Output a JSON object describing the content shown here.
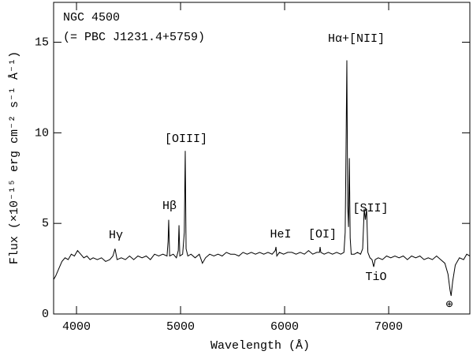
{
  "chart_data": {
    "type": "line",
    "xlabel": "Wavelength (Å)",
    "ylabel": "Flux (×10⁻¹⁵ erg cm⁻² s⁻¹ Å⁻¹)",
    "annotations": [
      "NGC 4500",
      "(= PBC J1231.4+5759)",
      "Hγ",
      "Hβ",
      "[OIII]",
      "HeI",
      "[OI]",
      "Hα+[NII]",
      "[SII]",
      "TiO",
      "⊕"
    ],
    "xlim": [
      3780,
      7780
    ],
    "ylim": [
      0,
      17.2
    ],
    "xticks": [
      4000,
      5000,
      6000,
      7000
    ],
    "yticks": [
      0,
      5,
      10,
      15
    ],
    "x": [
      3780,
      3800,
      3830,
      3860,
      3890,
      3920,
      3950,
      3980,
      4010,
      4040,
      4070,
      4100,
      4130,
      4160,
      4200,
      4240,
      4280,
      4320,
      4350,
      4370,
      4390,
      4430,
      4470,
      4510,
      4550,
      4590,
      4630,
      4670,
      4710,
      4750,
      4790,
      4830,
      4870,
      4880,
      4886,
      4895,
      4930,
      4960,
      4978,
      4985,
      4993,
      5020,
      5036,
      5045,
      5053,
      5070,
      5100,
      5140,
      5180,
      5210,
      5240,
      5280,
      5320,
      5360,
      5400,
      5440,
      5480,
      5520,
      5560,
      5600,
      5640,
      5680,
      5720,
      5760,
      5800,
      5840,
      5880,
      5910,
      5917,
      5925,
      5950,
      5990,
      6030,
      6070,
      6110,
      6150,
      6190,
      6230,
      6270,
      6310,
      6335,
      6341,
      6348,
      6380,
      6420,
      6460,
      6500,
      6540,
      6570,
      6582,
      6590,
      6598,
      6606,
      6614,
      6622,
      6630,
      6640,
      6670,
      6700,
      6730,
      6750,
      6765,
      6776,
      6788,
      6800,
      6820,
      6840,
      6856,
      6870,
      6900,
      6940,
      6980,
      7020,
      7060,
      7100,
      7140,
      7180,
      7220,
      7260,
      7300,
      7340,
      7380,
      7420,
      7460,
      7500,
      7540,
      7570,
      7590,
      7600,
      7615,
      7640,
      7680,
      7720,
      7750,
      7780
    ],
    "series": [
      {
        "color": "#000000",
        "values": [
          1.9,
          2.1,
          2.5,
          2.9,
          3.1,
          3.0,
          3.3,
          3.2,
          3.5,
          3.3,
          3.1,
          3.2,
          3.0,
          3.1,
          3.0,
          3.1,
          2.9,
          3.0,
          3.2,
          3.6,
          3.0,
          3.1,
          3.0,
          3.2,
          3.0,
          3.2,
          3.1,
          3.2,
          3.0,
          3.3,
          3.2,
          3.3,
          3.2,
          4.0,
          5.2,
          3.2,
          3.3,
          3.1,
          3.5,
          4.9,
          3.2,
          3.3,
          4.5,
          9.0,
          3.6,
          3.2,
          3.3,
          3.1,
          3.3,
          2.8,
          3.1,
          3.3,
          3.2,
          3.3,
          3.2,
          3.4,
          3.3,
          3.3,
          3.2,
          3.4,
          3.3,
          3.4,
          3.3,
          3.4,
          3.3,
          3.4,
          3.3,
          3.5,
          3.7,
          3.2,
          3.4,
          3.3,
          3.4,
          3.4,
          3.3,
          3.4,
          3.3,
          3.5,
          3.3,
          3.4,
          3.4,
          3.7,
          3.4,
          3.3,
          3.4,
          3.3,
          3.4,
          3.3,
          3.4,
          4.5,
          9.0,
          14.0,
          6.0,
          4.8,
          8.6,
          4.2,
          3.3,
          3.3,
          3.4,
          3.3,
          3.6,
          5.8,
          5.2,
          5.8,
          3.4,
          3.1,
          3.0,
          2.6,
          3.0,
          3.1,
          3.0,
          3.2,
          3.1,
          3.2,
          3.1,
          3.2,
          3.0,
          3.2,
          3.1,
          3.2,
          3.0,
          3.1,
          3.0,
          3.2,
          3.0,
          2.8,
          2.2,
          1.3,
          1.0,
          1.8,
          2.7,
          3.1,
          3.0,
          3.3,
          3.2
        ]
      }
    ]
  }
}
